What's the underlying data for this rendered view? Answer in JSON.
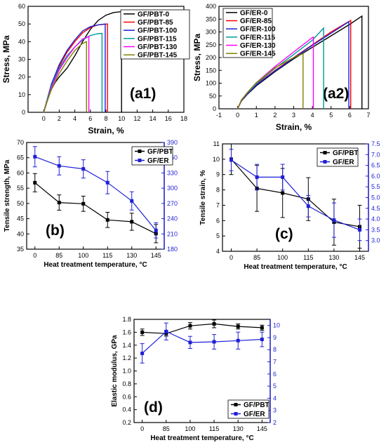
{
  "chart_data": [
    {
      "id": "a1",
      "type": "line",
      "panel_label": "(a1)",
      "xlabel": "Strain, %",
      "ylabel": "Stress, MPa",
      "xlim": [
        -2,
        18
      ],
      "ylim": [
        0,
        60
      ],
      "xticks": [
        0,
        2,
        4,
        6,
        8,
        10,
        12,
        14,
        16,
        18
      ],
      "yticks": [
        0,
        10,
        20,
        30,
        40,
        50,
        60
      ],
      "legend": "top-right",
      "series": [
        {
          "name": "GF/PBT-0",
          "color": "#000000",
          "x": [
            0,
            0.5,
            1,
            1.5,
            2,
            3,
            4,
            5,
            6,
            7,
            8,
            9,
            10,
            10
          ],
          "y": [
            0,
            7,
            13,
            17,
            20,
            25,
            32,
            40,
            47,
            52,
            55,
            56.5,
            57,
            0
          ]
        },
        {
          "name": "GF/PBT-85",
          "color": "#ff0000",
          "x": [
            0,
            0.5,
            1,
            2,
            3,
            4,
            5,
            6,
            7,
            8.2,
            8.2
          ],
          "y": [
            0,
            8,
            16,
            26,
            34,
            40,
            45,
            48,
            49.5,
            50,
            0
          ]
        },
        {
          "name": "GF/PBT-100",
          "color": "#1f1fd6",
          "x": [
            0,
            0.5,
            1,
            2,
            3,
            4,
            5,
            6,
            7,
            7.9,
            7.9
          ],
          "y": [
            0,
            8,
            16,
            27,
            35,
            41,
            46,
            48.5,
            49.5,
            50,
            0
          ]
        },
        {
          "name": "GF/PBT-115",
          "color": "#009999",
          "x": [
            0,
            0.5,
            1,
            2,
            3,
            4,
            5,
            6,
            7,
            7.5,
            7.5
          ],
          "y": [
            0,
            7.5,
            15,
            25,
            32,
            37,
            41,
            43.5,
            44.5,
            44.7,
            0
          ]
        },
        {
          "name": "GF/PBT-130",
          "color": "#ff00ff",
          "x": [
            0,
            0.5,
            1,
            2,
            3,
            4,
            5,
            5.8,
            5.8
          ],
          "y": [
            0,
            7,
            14,
            24,
            31,
            37,
            41.5,
            43,
            0
          ]
        },
        {
          "name": "GF/PBT-145",
          "color": "#808000",
          "x": [
            0,
            0.5,
            1,
            2,
            3,
            4,
            5,
            5.5,
            5.5
          ],
          "y": [
            0,
            7,
            13,
            22,
            29,
            35,
            39,
            40,
            0
          ]
        }
      ]
    },
    {
      "id": "a2",
      "type": "line",
      "panel_label": "(a2)",
      "xlabel": "Strain, %",
      "ylabel": "Stress, MPa",
      "xlim": [
        -1,
        7
      ],
      "ylim": [
        0,
        400
      ],
      "xticks": [
        -1,
        0,
        1,
        2,
        3,
        4,
        5,
        6,
        7
      ],
      "yticks": [
        0,
        50,
        100,
        150,
        200,
        250,
        300,
        350,
        400
      ],
      "legend": "top-left",
      "series": [
        {
          "name": "GF/ER-0",
          "color": "#000000",
          "x": [
            0,
            0.2,
            0.5,
            1,
            2,
            3,
            4,
            5,
            6,
            6.65,
            6.65
          ],
          "y": [
            0,
            30,
            55,
            90,
            145,
            195,
            240,
            285,
            330,
            362,
            0
          ]
        },
        {
          "name": "GF/ER-85",
          "color": "#ff0000",
          "x": [
            0,
            0.2,
            0.5,
            1,
            2,
            3,
            4,
            5,
            6,
            6.05,
            6.05
          ],
          "y": [
            0,
            32,
            58,
            95,
            150,
            200,
            250,
            300,
            343,
            345,
            0
          ]
        },
        {
          "name": "GF/ER-100",
          "color": "#1f1fd6",
          "x": [
            0,
            0.2,
            0.5,
            1,
            2,
            3,
            4,
            5,
            5.95,
            5.95
          ],
          "y": [
            0,
            32,
            57,
            93,
            148,
            198,
            248,
            295,
            340,
            0
          ]
        },
        {
          "name": "GF/ER-115",
          "color": "#009999",
          "x": [
            0,
            0.2,
            0.5,
            1,
            2,
            3,
            4,
            4.6,
            4.6
          ],
          "y": [
            0,
            33,
            60,
            98,
            158,
            212,
            268,
            315,
            0
          ]
        },
        {
          "name": "GF/ER-130",
          "color": "#ff00ff",
          "x": [
            0,
            0.2,
            0.5,
            1,
            2,
            3,
            4,
            4.05,
            4.05
          ],
          "y": [
            0,
            34,
            62,
            102,
            165,
            222,
            278,
            280,
            0
          ]
        },
        {
          "name": "GF/ER-145",
          "color": "#808000",
          "x": [
            0,
            0.2,
            0.5,
            1,
            2,
            3,
            3.5,
            3.5
          ],
          "y": [
            0,
            34,
            62,
            102,
            160,
            200,
            215,
            0
          ]
        }
      ]
    },
    {
      "id": "b",
      "type": "line",
      "panel_label": "(b)",
      "xlabel": "Heat treatment temperature, °C",
      "ylabel": "Tensile strength, MPa",
      "categories": [
        "0",
        "85",
        "100",
        "115",
        "130",
        "145"
      ],
      "ylim": [
        35,
        70
      ],
      "yticks": [
        35,
        40,
        45,
        50,
        55,
        60,
        65,
        70
      ],
      "y2lim": [
        180,
        390
      ],
      "y2ticks": [
        180,
        210,
        240,
        270,
        300,
        330,
        360,
        390
      ],
      "legend": "top-right",
      "series": [
        {
          "name": "GF/PBT",
          "color": "#000000",
          "marker": "square",
          "axis": "left",
          "values": [
            56.8,
            50.3,
            49.9,
            44.6,
            44.0,
            40.1
          ],
          "errors": [
            3.0,
            2.5,
            2.5,
            2.5,
            2.8,
            3.0
          ]
        },
        {
          "name": "GF/ER",
          "color": "#1f1fd6",
          "marker": "square",
          "axis": "right",
          "values": [
            362,
            344,
            338,
            311,
            275,
            217
          ],
          "errors": [
            20,
            18,
            18,
            22,
            18,
            15
          ]
        }
      ]
    },
    {
      "id": "c",
      "type": "line",
      "panel_label": "(c)",
      "xlabel": "Heat treatment temperature, °C",
      "ylabel": "Tensile strain, %",
      "categories": [
        "0",
        "85",
        "100",
        "115",
        "130",
        "145"
      ],
      "ylim": [
        4,
        11
      ],
      "yticks": [
        4,
        5,
        6,
        7,
        8,
        9,
        10,
        11
      ],
      "y2lim": [
        2.5,
        7.5
      ],
      "y2ticks": [
        3.0,
        3.5,
        4.0,
        4.5,
        5.0,
        5.5,
        6.0,
        6.5,
        7.0,
        7.5
      ],
      "legend": "top-right",
      "series": [
        {
          "name": "GF/PBT",
          "color": "#000000",
          "marker": "square",
          "axis": "left",
          "values": [
            10.0,
            8.1,
            7.8,
            7.4,
            5.9,
            5.6
          ],
          "errors": [
            1.0,
            1.5,
            1.6,
            1.4,
            1.5,
            1.4
          ]
        },
        {
          "name": "GF/ER",
          "color": "#1f1fd6",
          "marker": "square",
          "axis": "right",
          "values": [
            6.75,
            5.95,
            5.95,
            4.6,
            3.95,
            3.5
          ],
          "errors": [
            0.5,
            0.6,
            0.6,
            0.5,
            0.8,
            0.5
          ]
        }
      ]
    },
    {
      "id": "d",
      "type": "line",
      "panel_label": "(d)",
      "xlabel": "Heat treatment temperature, °C",
      "ylabel": "Elastic modulus, GPa",
      "categories": [
        "0",
        "85",
        "100",
        "115",
        "130",
        "145"
      ],
      "ylim": [
        0.2,
        1.8
      ],
      "yticks": [
        0.2,
        0.4,
        0.6,
        0.8,
        1.0,
        1.2,
        1.4,
        1.6,
        1.8
      ],
      "y2lim": [
        2,
        10.5
      ],
      "y2ticks": [
        2,
        3,
        4,
        5,
        6,
        7,
        8,
        9,
        10
      ],
      "legend": "bottom-right",
      "series": [
        {
          "name": "GF/PBT",
          "color": "#000000",
          "marker": "square",
          "axis": "left",
          "values": [
            1.6,
            1.58,
            1.7,
            1.73,
            1.69,
            1.67
          ],
          "errors": [
            0.05,
            0.04,
            0.05,
            0.06,
            0.04,
            0.04
          ]
        },
        {
          "name": "GF/ER",
          "color": "#1f1fd6",
          "marker": "square",
          "axis": "right",
          "values": [
            7.7,
            9.5,
            8.6,
            8.65,
            8.75,
            8.85
          ],
          "errors": [
            0.8,
            0.7,
            0.5,
            0.6,
            0.7,
            0.6
          ]
        }
      ]
    }
  ]
}
